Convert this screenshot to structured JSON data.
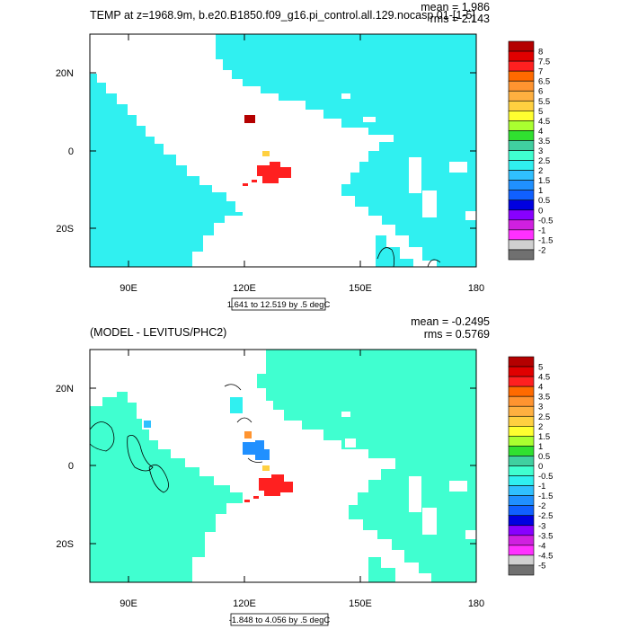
{
  "panels": [
    {
      "title": "TEMP at z=1968.9m, b.e20.B1850.f09_g16.pi_control.all.129.nocasp.01-[1-5]",
      "stats": {
        "mean": "mean = 1.986",
        "rms": "rms = 2.143"
      },
      "range_note": "1.641 to 12.519 by .5 degC",
      "x_ticks": [
        "90E",
        "120E",
        "150E",
        "180"
      ],
      "y_ticks": [
        "20N",
        "0",
        "20S"
      ],
      "colorbar": {
        "labels": [
          "8",
          "7.5",
          "7",
          "6.5",
          "6",
          "5.5",
          "5",
          "4.5",
          "4",
          "3.5",
          "3",
          "2.5",
          "2",
          "1.5",
          "1",
          "0.5",
          "0",
          "-0.5",
          "-1",
          "-1.5",
          "-2"
        ],
        "colors": [
          "#b40000",
          "#e00000",
          "#ff2020",
          "#ff6a00",
          "#ff9430",
          "#ffb040",
          "#ffd040",
          "#ffff30",
          "#aaff30",
          "#30e030",
          "#40d0a0",
          "#40ffd0",
          "#30f0f0",
          "#30c0ff",
          "#2090ff",
          "#1060ff",
          "#0000e0",
          "#8800ff",
          "#d020e0",
          "#ff30ff",
          "#d0d0d0",
          "#707070"
        ]
      }
    },
    {
      "title": "(MODEL - LEVITUS/PHC2)",
      "stats": {
        "mean": "mean = -0.2495",
        "rms": "rms = 0.5769"
      },
      "range_note": "-1.848 to 4.056 by .5 degC",
      "x_ticks": [
        "90E",
        "120E",
        "150E",
        "180"
      ],
      "y_ticks": [
        "20N",
        "0",
        "20S"
      ],
      "colorbar": {
        "labels": [
          "5",
          "4.5",
          "4",
          "3.5",
          "3",
          "2.5",
          "2",
          "1.5",
          "1",
          "0.5",
          "0",
          "-0.5",
          "-1",
          "-1.5",
          "-2",
          "-2.5",
          "-3",
          "-3.5",
          "-4",
          "-4.5",
          "-5"
        ],
        "colors": [
          "#b40000",
          "#e00000",
          "#ff2020",
          "#ff6a00",
          "#ff9430",
          "#ffb040",
          "#ffd040",
          "#ffff30",
          "#aaff30",
          "#30e030",
          "#40d0a0",
          "#40ffd0",
          "#30f0f0",
          "#30c0ff",
          "#2090ff",
          "#1060ff",
          "#0000e0",
          "#8800ff",
          "#d020e0",
          "#ff30ff",
          "#d0d0d0",
          "#707070"
        ]
      }
    }
  ],
  "chart_data": [
    {
      "type": "heatmap",
      "title": "TEMP at z=1968.9m, b.e20.B1850.f09_g16.pi_control.all.129.nocasp.01-[1-5]",
      "x_range_deg": [
        80,
        180
      ],
      "y_range_deg": [
        -30,
        30
      ],
      "x_ticks": [
        90,
        120,
        150,
        180
      ],
      "y_ticks": [
        20,
        0,
        -20
      ],
      "levels": [
        -2,
        -1.5,
        -1,
        -0.5,
        0,
        0.5,
        1,
        1.5,
        2,
        2.5,
        3,
        3.5,
        4,
        4.5,
        5,
        5.5,
        6,
        6.5,
        7,
        7.5,
        8
      ],
      "mean": 1.986,
      "rms": 2.143,
      "min": 1.641,
      "max": 12.519,
      "interval": 0.5,
      "units": "degC",
      "dominant_color": "#30f0f0"
    },
    {
      "type": "heatmap",
      "title": "(MODEL - LEVITUS/PHC2)",
      "x_range_deg": [
        80,
        180
      ],
      "y_range_deg": [
        -30,
        30
      ],
      "x_ticks": [
        90,
        120,
        150,
        180
      ],
      "y_ticks": [
        20,
        0,
        -20
      ],
      "levels": [
        -5,
        -4.5,
        -4,
        -3.5,
        -3,
        -2.5,
        -2,
        -1.5,
        -1,
        -0.5,
        0,
        0.5,
        1,
        1.5,
        2,
        2.5,
        3,
        3.5,
        4,
        4.5,
        5
      ],
      "mean": -0.2495,
      "rms": 0.5769,
      "min": -1.848,
      "max": 4.056,
      "interval": 0.5,
      "units": "degC",
      "dominant_color": "#40ffd0"
    }
  ]
}
